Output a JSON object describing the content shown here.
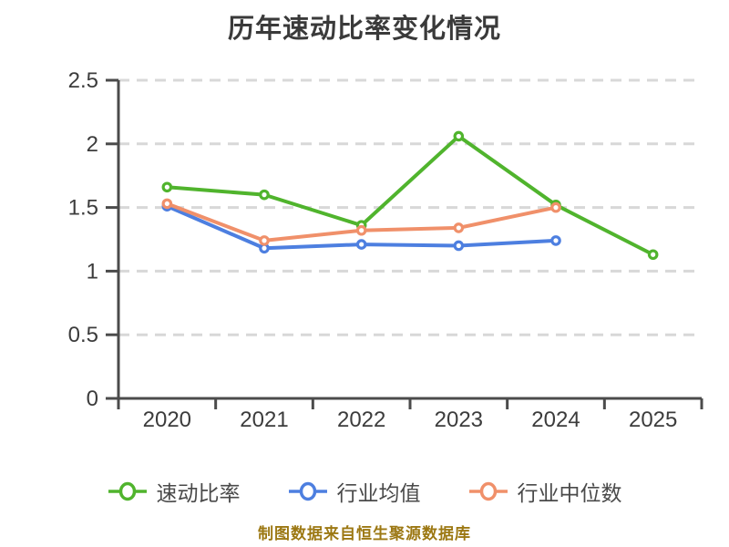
{
  "title": "历年速动比率变化情况",
  "footer": "制图数据来自恒生聚源数据库",
  "colors": {
    "background": "#ffffff",
    "title_text": "#3a3a3a",
    "axis": "#4b4b4b",
    "tick_label": "#3c3c3c",
    "gridline": "#d8d8d8",
    "legend_label": "#4a4a4a",
    "footer_text": "#9c7813"
  },
  "chart_data": {
    "type": "line",
    "title": "历年速动比率变化情况",
    "categories": [
      "2020",
      "2021",
      "2022",
      "2023",
      "2024",
      "2025"
    ],
    "y_ticks": [
      0,
      0.5,
      1,
      1.5,
      2,
      2.5
    ],
    "ylim": [
      0,
      2.5
    ],
    "grid": "horizontal-dashed",
    "legend_position": "bottom",
    "marker": "circle-white-fill",
    "series": [
      {
        "name": "速动比率",
        "color": "#50b42d",
        "values": [
          1.66,
          1.6,
          1.36,
          2.06,
          1.52,
          1.13
        ]
      },
      {
        "name": "行业均值",
        "color": "#4d7fe0",
        "values": [
          1.51,
          1.18,
          1.21,
          1.2,
          1.24,
          null
        ]
      },
      {
        "name": "行业中位数",
        "color": "#f0906a",
        "values": [
          1.53,
          1.24,
          1.32,
          1.34,
          1.5,
          null
        ]
      }
    ]
  }
}
